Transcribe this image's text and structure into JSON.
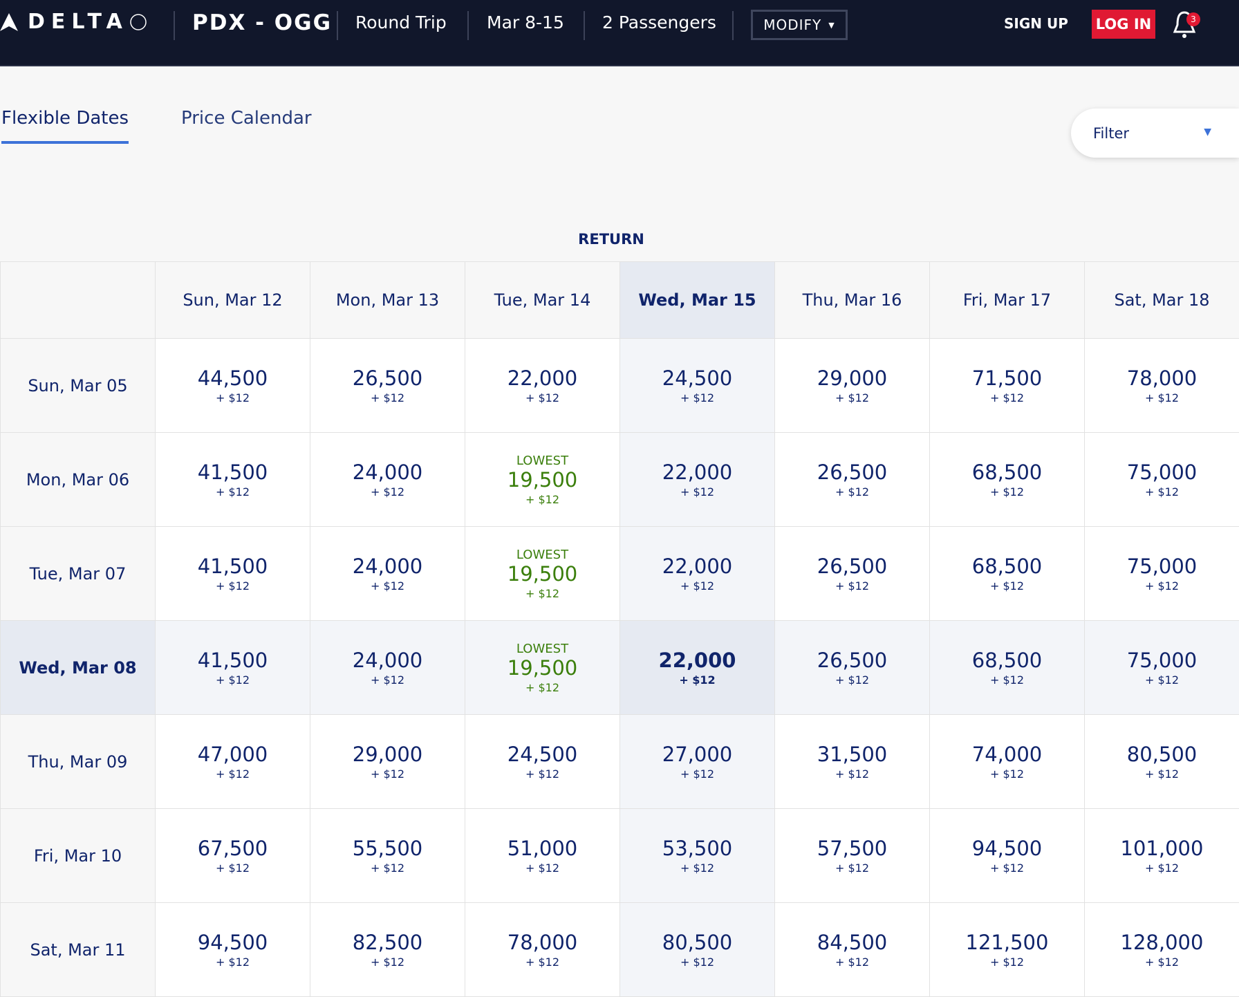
{
  "header": {
    "brand": "DELTA",
    "route": "PDX - OGG",
    "trip_type": "Round Trip",
    "dates": "Mar 8-15",
    "passengers": "2 Passengers",
    "modify": "MODIFY",
    "sign_up": "SIGN UP",
    "log_in": "LOG IN",
    "notification_count": "3"
  },
  "tabs": [
    {
      "label": "Flexible Dates",
      "active": true
    },
    {
      "label": "Price Calendar",
      "active": false
    }
  ],
  "filter": {
    "label": "Filter"
  },
  "return_label": "RETURN",
  "colors": {
    "nav": "#11172b",
    "accent": "#e01933",
    "lowest": "#3b7f0c",
    "text": "#10246b"
  },
  "grid": {
    "return_dates": [
      "Sun, Mar 12",
      "Mon, Mar 13",
      "Tue, Mar 14",
      "Wed, Mar 15",
      "Thu, Mar 16",
      "Fri, Mar 17",
      "Sat, Mar 18"
    ],
    "selected_return": 3,
    "selected_depart": 3,
    "lowest_label": "LOWEST",
    "rows": [
      {
        "depart": "Sun, Mar 05",
        "prices": [
          "44,500",
          "26,500",
          "22,000",
          "24,500",
          "29,000",
          "71,500",
          "78,000"
        ],
        "taxes": [
          "+ $12",
          "+ $12",
          "+ $12",
          "+ $12",
          "+ $12",
          "+ $12",
          "+ $12"
        ],
        "lowest": []
      },
      {
        "depart": "Mon, Mar 06",
        "prices": [
          "41,500",
          "24,000",
          "19,500",
          "22,000",
          "26,500",
          "68,500",
          "75,000"
        ],
        "taxes": [
          "+ $12",
          "+ $12",
          "+ $12",
          "+ $12",
          "+ $12",
          "+ $12",
          "+ $12"
        ],
        "lowest": [
          2
        ]
      },
      {
        "depart": "Tue, Mar 07",
        "prices": [
          "41,500",
          "24,000",
          "19,500",
          "22,000",
          "26,500",
          "68,500",
          "75,000"
        ],
        "taxes": [
          "+ $12",
          "+ $12",
          "+ $12",
          "+ $12",
          "+ $12",
          "+ $12",
          "+ $12"
        ],
        "lowest": [
          2
        ]
      },
      {
        "depart": "Wed, Mar 08",
        "prices": [
          "41,500",
          "24,000",
          "19,500",
          "22,000",
          "26,500",
          "68,500",
          "75,000"
        ],
        "taxes": [
          "+ $12",
          "+ $12",
          "+ $12",
          "+ $12",
          "+ $12",
          "+ $12",
          "+ $12"
        ],
        "lowest": [
          2
        ]
      },
      {
        "depart": "Thu, Mar 09",
        "prices": [
          "47,000",
          "29,000",
          "24,500",
          "27,000",
          "31,500",
          "74,000",
          "80,500"
        ],
        "taxes": [
          "+ $12",
          "+ $12",
          "+ $12",
          "+ $12",
          "+ $12",
          "+ $12",
          "+ $12"
        ],
        "lowest": []
      },
      {
        "depart": "Fri, Mar 10",
        "prices": [
          "67,500",
          "55,500",
          "51,000",
          "53,500",
          "57,500",
          "94,500",
          "101,000"
        ],
        "taxes": [
          "+ $12",
          "+ $12",
          "+ $12",
          "+ $12",
          "+ $12",
          "+ $12",
          "+ $12"
        ],
        "lowest": []
      },
      {
        "depart": "Sat, Mar 11",
        "prices": [
          "94,500",
          "82,500",
          "78,000",
          "80,500",
          "84,500",
          "121,500",
          "128,000"
        ],
        "taxes": [
          "+ $12",
          "+ $12",
          "+ $12",
          "+ $12",
          "+ $12",
          "+ $12",
          "+ $12"
        ],
        "lowest": []
      }
    ]
  }
}
